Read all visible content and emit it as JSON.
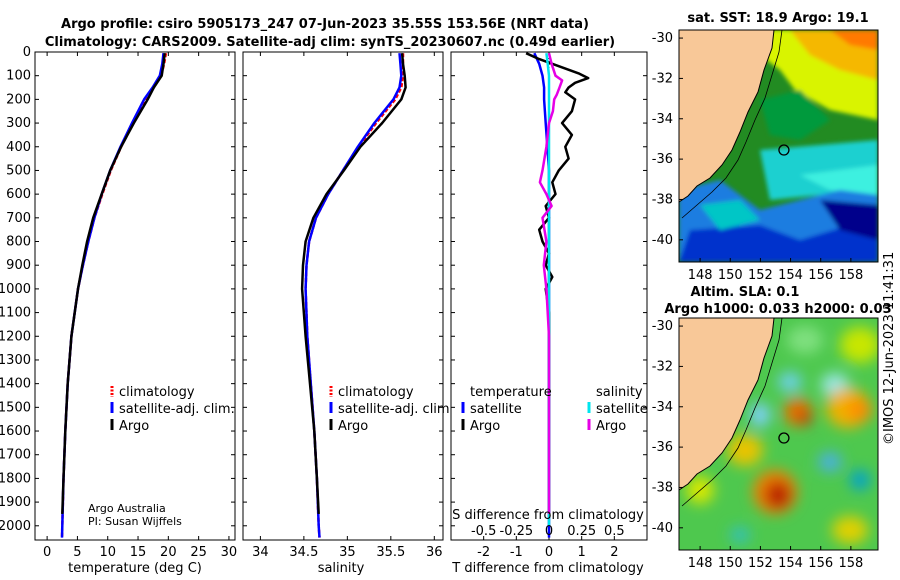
{
  "header": {
    "line1": "Argo profile: csiro 5905173_247 07-Jun-2023 35.55S 153.56E (NRT data)",
    "line2": "Climatology: CARS2009. Satellite-adj clim: synTS_20230607.nc (0.49d earlier)"
  },
  "colors": {
    "climatology": "#ff0000",
    "satellite": "#0000ff",
    "argo": "#000000",
    "sat_diff": "#00e5ee",
    "argo_sal": "#e600e6",
    "land": "#f8c898"
  },
  "credit": {
    "line1": "Argo Australia",
    "line2": "PI: Susan Wijffels"
  },
  "watermark": "©IMOS 12-Jun-2023 11:41:31",
  "legend1": {
    "a": "climatology",
    "b": "satellite-adj. clim.",
    "c": "Argo"
  },
  "legend3": {
    "temp_header": "temperature",
    "sal_header": "salinity",
    "sat": "satellite",
    "argo": "Argo"
  },
  "map1": {
    "title": "sat. SST: 18.9 Argo: 19.1"
  },
  "map2": {
    "title1": "Altim. SLA: 0.1",
    "title2": "Argo h1000: 0.033 h2000: 0.03"
  },
  "chart_data": [
    {
      "type": "line",
      "id": "temperature",
      "xlabel": "temperature (deg C)",
      "ylabel": "depth",
      "xlim": [
        -2,
        31
      ],
      "ylim": [
        2060,
        0
      ],
      "xticks": [
        0,
        5,
        10,
        15,
        20,
        25,
        30
      ],
      "yticks": [
        0,
        100,
        200,
        300,
        400,
        500,
        600,
        700,
        800,
        900,
        1000,
        1100,
        1200,
        1300,
        1400,
        1500,
        1600,
        1700,
        1800,
        1900,
        2000
      ],
      "series": [
        {
          "name": "climatology",
          "color": "#ff0000",
          "depth": [
            5,
            50,
            100,
            150,
            200,
            300,
            400,
            500,
            600,
            700,
            800,
            900,
            1000,
            1200,
            1400,
            1600,
            1800,
            2000,
            2050
          ],
          "values": [
            19.6,
            19.3,
            18.8,
            17.6,
            16.2,
            14.1,
            12.2,
            10.5,
            9.1,
            7.8,
            6.8,
            5.9,
            5.1,
            4.0,
            3.4,
            3.0,
            2.7,
            2.5,
            2.45
          ]
        },
        {
          "name": "satellite-adj. clim.",
          "color": "#0000ff",
          "depth": [
            5,
            50,
            100,
            150,
            200,
            300,
            400,
            500,
            600,
            700,
            800,
            900,
            1000,
            1200,
            1400,
            1600,
            1800,
            2000,
            2050
          ],
          "values": [
            19.2,
            19.0,
            18.6,
            17.4,
            16.0,
            14.0,
            12.1,
            10.4,
            9.0,
            7.8,
            6.8,
            5.9,
            5.1,
            4.0,
            3.4,
            3.0,
            2.7,
            2.5,
            2.45
          ]
        },
        {
          "name": "Argo",
          "color": "#000000",
          "depth": [
            5,
            50,
            100,
            150,
            200,
            300,
            400,
            500,
            600,
            700,
            800,
            900,
            1000,
            1200,
            1400,
            1600,
            1800,
            1950
          ],
          "values": [
            19.4,
            19.2,
            18.9,
            17.6,
            16.6,
            14.3,
            12.2,
            10.4,
            9.0,
            7.6,
            6.6,
            5.8,
            5.1,
            4.0,
            3.4,
            3.0,
            2.7,
            2.5
          ]
        }
      ]
    },
    {
      "type": "line",
      "id": "salinity",
      "xlabel": "salinity",
      "ylabel": "depth",
      "xlim": [
        33.8,
        36.1
      ],
      "ylim": [
        2060,
        0
      ],
      "xticks": [
        34,
        34.5,
        35,
        35.5,
        36
      ],
      "series": [
        {
          "name": "climatology",
          "color": "#ff0000",
          "depth": [
            5,
            50,
            100,
            150,
            200,
            300,
            400,
            500,
            600,
            700,
            800,
            900,
            1000,
            1200,
            1400,
            1600,
            1800,
            2000,
            2050
          ],
          "values": [
            35.64,
            35.64,
            35.64,
            35.62,
            35.55,
            35.33,
            35.13,
            34.95,
            34.78,
            34.64,
            34.56,
            34.53,
            34.52,
            34.54,
            34.58,
            34.62,
            34.65,
            34.67,
            34.68
          ]
        },
        {
          "name": "satellite-adj. clim.",
          "color": "#0000ff",
          "depth": [
            5,
            50,
            100,
            150,
            200,
            300,
            400,
            500,
            600,
            700,
            800,
            900,
            1000,
            1200,
            1400,
            1600,
            1800,
            2000,
            2050
          ],
          "values": [
            35.6,
            35.61,
            35.62,
            35.6,
            35.53,
            35.31,
            35.12,
            34.95,
            34.78,
            34.64,
            34.56,
            34.53,
            34.52,
            34.54,
            34.58,
            34.62,
            34.65,
            34.67,
            34.68
          ]
        },
        {
          "name": "Argo",
          "color": "#000000",
          "depth": [
            5,
            50,
            100,
            150,
            200,
            300,
            400,
            500,
            600,
            700,
            800,
            900,
            1000,
            1200,
            1400,
            1600,
            1800,
            1950
          ],
          "values": [
            35.63,
            35.64,
            35.66,
            35.67,
            35.62,
            35.4,
            35.15,
            34.96,
            34.76,
            34.61,
            34.52,
            34.49,
            34.48,
            34.52,
            34.57,
            34.62,
            34.65,
            34.67
          ]
        }
      ]
    },
    {
      "type": "line",
      "id": "differences",
      "xlabel": "T difference from climatology",
      "x2label": "S difference from climatology",
      "xlim": [
        -3,
        3
      ],
      "ylim": [
        2060,
        0
      ],
      "xticks": [
        -2,
        -1,
        0,
        1,
        2
      ],
      "sticks": [
        "-0.5",
        "-0.25",
        "0",
        "0.25",
        "0.5"
      ],
      "series": [
        {
          "name": "temperature satellite",
          "color": "#0000ff",
          "depth": [
            5,
            50,
            100,
            150,
            200,
            300,
            400,
            500,
            600,
            700,
            800,
            900,
            1000,
            1200,
            1400,
            1600,
            1800,
            2000,
            2050
          ],
          "values": [
            -0.45,
            -0.3,
            -0.2,
            -0.15,
            -0.15,
            -0.1,
            -0.05,
            0,
            0,
            0,
            0,
            0,
            0,
            0,
            0,
            0,
            0,
            0,
            0
          ]
        },
        {
          "name": "temperature Argo",
          "color": "#000000",
          "depth": [
            5,
            30,
            60,
            90,
            110,
            130,
            150,
            170,
            200,
            250,
            300,
            350,
            400,
            450,
            500,
            550,
            600,
            650,
            700,
            750,
            800,
            850,
            900,
            950,
            1000,
            1100,
            1200,
            1400,
            1600,
            1800,
            1950
          ],
          "values": [
            -0.7,
            -0.3,
            0.3,
            0.9,
            1.2,
            0.8,
            0.6,
            0.5,
            0.8,
            0.7,
            0.4,
            0.7,
            0.5,
            0.6,
            0.3,
            0.1,
            0.2,
            -0.1,
            0,
            -0.3,
            -0.2,
            0,
            -0.1,
            0.1,
            -0.1,
            0,
            0,
            0,
            0,
            0,
            0
          ]
        },
        {
          "name": "salinity satellite",
          "color": "#00e5ee",
          "depth": [
            5,
            50,
            100,
            150,
            200,
            300,
            400,
            500,
            600,
            700,
            800,
            900,
            1000,
            1200,
            1400,
            1600,
            1800,
            2000
          ],
          "values": [
            -0.02,
            -0.01,
            0,
            0,
            0,
            0,
            0,
            0,
            0,
            0,
            0,
            0,
            0,
            0,
            0,
            0,
            0,
            0
          ]
        },
        {
          "name": "salinity Argo",
          "color": "#e600e6",
          "depth": [
            5,
            50,
            100,
            120,
            150,
            180,
            200,
            250,
            300,
            400,
            500,
            550,
            600,
            650,
            700,
            800,
            900,
            1000,
            1200,
            1400,
            1600,
            1800,
            1950
          ],
          "values": [
            0,
            0.02,
            0.05,
            0.1,
            0.08,
            0.06,
            0.04,
            0.03,
            0,
            -0.02,
            -0.05,
            -0.07,
            -0.02,
            0.02,
            -0.05,
            -0.02,
            -0.04,
            -0.02,
            0,
            0,
            0,
            0,
            0
          ]
        }
      ]
    },
    {
      "type": "heatmap",
      "id": "sst-map",
      "title": "sat. SST: 18.9 Argo: 19.1",
      "xticks": [
        148,
        150,
        152,
        154,
        156,
        158
      ],
      "yticks": [
        -30,
        -32,
        -34,
        -36,
        -38,
        -40
      ],
      "xlim": [
        146.6,
        159.8
      ],
      "ylim": [
        -41.1,
        -29.6
      ],
      "argo_position": [
        153.56,
        -35.55
      ]
    },
    {
      "type": "heatmap",
      "id": "sla-map",
      "title": "Altim. SLA: 0.1",
      "subtitle": "Argo h1000: 0.033 h2000: 0.03",
      "xticks": [
        148,
        150,
        152,
        154,
        156,
        158
      ],
      "yticks": [
        -30,
        -32,
        -34,
        -36,
        -38,
        -40
      ],
      "xlim": [
        146.6,
        159.8
      ],
      "ylim": [
        -41.1,
        -29.6
      ],
      "argo_position": [
        153.56,
        -35.55
      ]
    }
  ]
}
